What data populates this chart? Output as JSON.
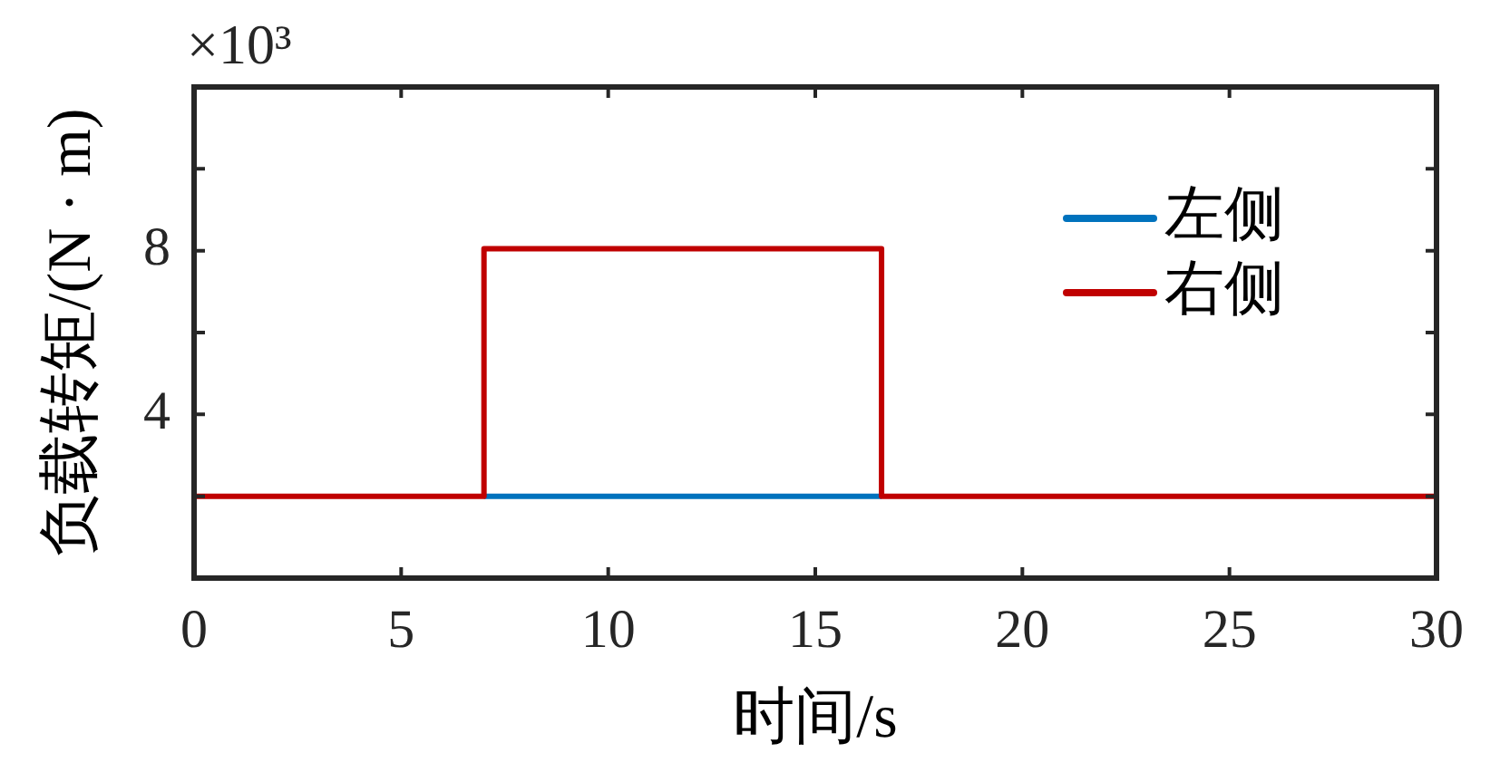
{
  "chart_data": {
    "type": "step",
    "xlabel": "时间/s",
    "ylabel": "负载转矩/(N · m)",
    "annotations": [
      "×10³"
    ],
    "series": [
      {
        "name": "左侧",
        "color": "#0072bd",
        "x": [
          7,
          16.6
        ],
        "values": [
          2,
          2
        ]
      },
      {
        "name": "右侧",
        "color": "#c00000",
        "x": [
          0,
          7,
          16.6,
          30
        ],
        "values": [
          2,
          8.05,
          2,
          2
        ]
      }
    ],
    "xlim": [
      0,
      30
    ],
    "xticks": [
      0,
      5,
      10,
      15,
      20,
      25,
      30
    ],
    "ylim": [
      0,
      12
    ],
    "yticks": [
      {
        "value": 0,
        "label": null
      },
      {
        "value": 2,
        "label": null
      },
      4,
      {
        "value": 6,
        "label": null
      },
      8,
      {
        "value": 10,
        "label": null
      },
      {
        "value": 12,
        "label": null
      }
    ],
    "legend": "top right"
  }
}
